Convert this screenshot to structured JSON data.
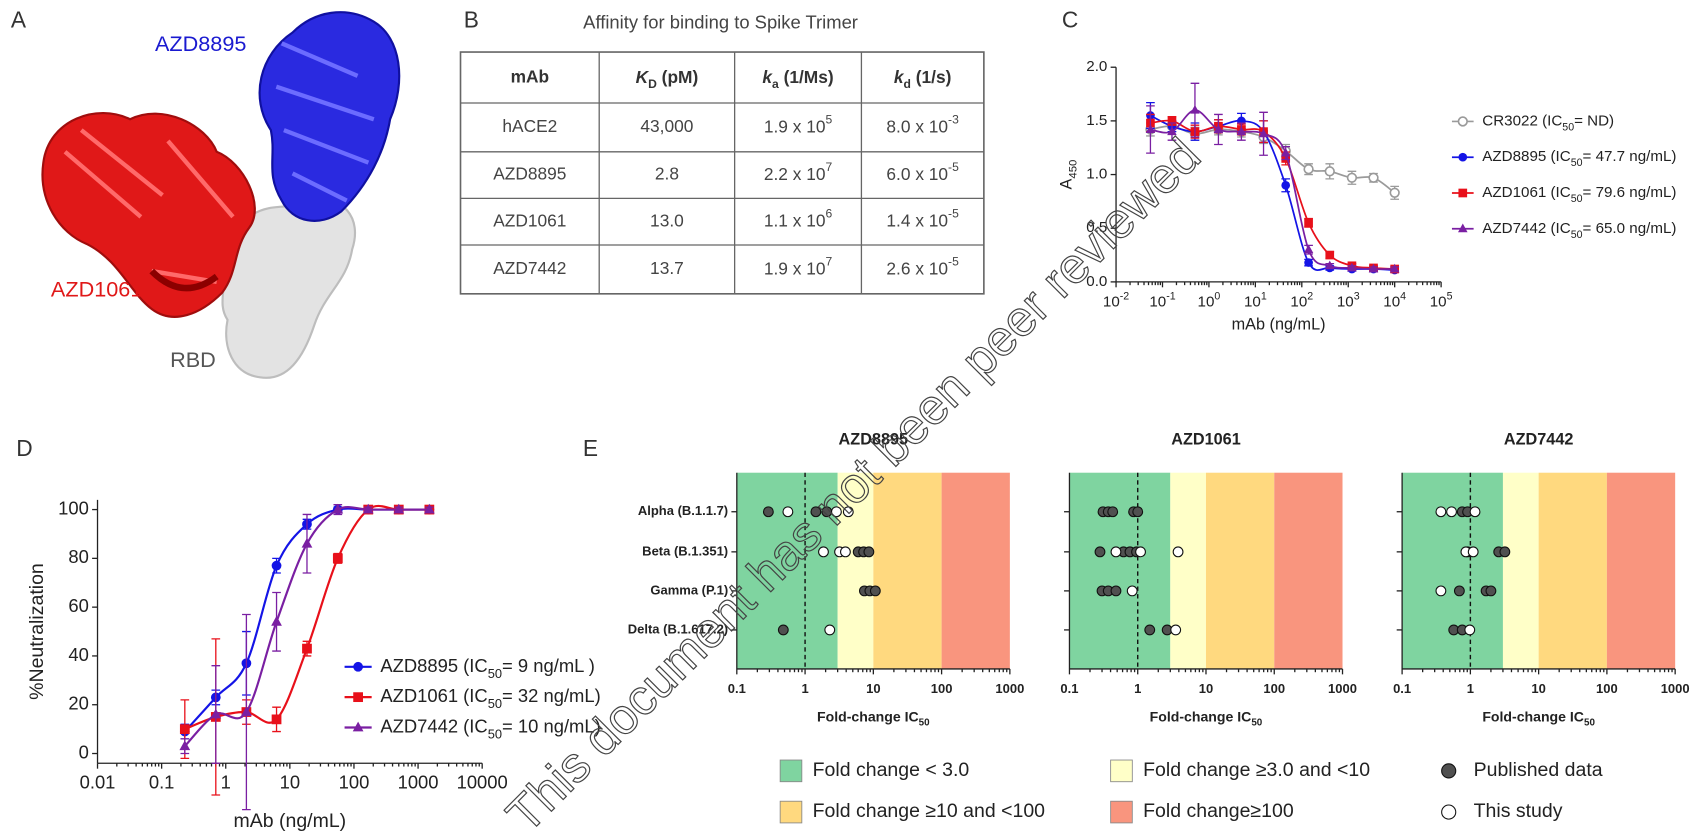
{
  "structure": {
    "label": "A",
    "chains": [
      "AZD8895",
      "AZD1061",
      "RBD"
    ]
  },
  "table": {
    "label": "B",
    "title": "Affinity for binding to Spike Trimer",
    "header": [
      "mAb",
      [
        "K",
        "D",
        " (pM)"
      ],
      [
        "k",
        "a",
        " (1/Ms)"
      ],
      [
        "k",
        "d",
        " (1/s)"
      ]
    ],
    "rows": [
      [
        "hACE2",
        "43,000",
        [
          "1.9 x 10",
          "5"
        ],
        [
          "8.0 x 10",
          "-3"
        ]
      ],
      [
        "AZD8895",
        "2.8",
        [
          "2.2 x 10",
          "7"
        ],
        [
          "6.0 x 10",
          "-5"
        ]
      ],
      [
        "AZD1061",
        "13.0",
        [
          "1.1 x 10",
          "6"
        ],
        [
          "1.4 x 10",
          "-5"
        ]
      ],
      [
        "AZD7442",
        "13.7",
        [
          "1.9 x 10",
          "7"
        ],
        [
          "2.6 x 10",
          "-5"
        ]
      ]
    ]
  },
  "chart_data": [
    {
      "label": "C",
      "type": "line",
      "x_scale": "log",
      "xlabel": "mAb (ng/mL)",
      "ylabel": [
        "A",
        "450"
      ],
      "xlim": [
        0.01,
        100000
      ],
      "xticks": [
        {
          "value": 0.01,
          "label": "10",
          "label_exp": "-2"
        },
        {
          "value": 0.1,
          "label": "10",
          "label_exp": "-1"
        },
        {
          "value": 1,
          "label": "10",
          "label_exp": "0"
        },
        {
          "value": 10,
          "label": "10",
          "label_exp": "1"
        },
        {
          "value": 100,
          "label": "10",
          "label_exp": "2"
        },
        {
          "value": 1000,
          "label": "10",
          "label_exp": "3"
        },
        {
          "value": 10000,
          "label": "10",
          "label_exp": "4"
        },
        {
          "value": 100000,
          "label": "10",
          "label_exp": "5"
        }
      ],
      "ylim": [
        0,
        2
      ],
      "yticks": [
        {
          "value": 0,
          "label": "0.0"
        },
        0.5,
        {
          "value": 1,
          "label": "1.0"
        },
        1.5,
        {
          "value": 2,
          "label": "2.0"
        }
      ],
      "x": [
        0.055,
        0.16,
        0.5,
        1.6,
        5,
        15,
        45,
        140,
        400,
        1200,
        3500,
        10000
      ],
      "legend": "right",
      "series": [
        {
          "name": [
            "CR3022 (IC",
            "50",
            "= ND)"
          ],
          "color": "#9a9a9a",
          "marker": "open-circle",
          "values": [
            1.42,
            1.45,
            1.38,
            1.42,
            1.4,
            1.35,
            1.22,
            1.05,
            1.03,
            0.97,
            0.97,
            0.83
          ],
          "errors": [
            0.06,
            0.05,
            0.06,
            0.05,
            0.05,
            0.06,
            0.06,
            0.05,
            0.07,
            0.06,
            0.04,
            0.06
          ]
        },
        {
          "name": [
            "AZD8895 (IC",
            "50",
            "= 47.7 ng/mL)"
          ],
          "color": "#1414e6",
          "marker": "circle",
          "values": [
            1.55,
            1.45,
            1.4,
            1.45,
            1.5,
            1.4,
            0.9,
            0.18,
            0.13,
            0.12,
            0.12,
            0.11
          ],
          "errors": [
            0.12,
            0.05,
            0.08,
            0.06,
            0.07,
            0.1,
            0.06,
            0.03,
            0.02,
            0.02,
            0.02,
            0.02
          ]
        },
        {
          "name": [
            "AZD1061 (IC",
            "50",
            "= 79.6 ng/mL)"
          ],
          "color": "#e8101a",
          "marker": "square",
          "values": [
            1.48,
            1.5,
            1.4,
            1.45,
            1.42,
            1.4,
            1.15,
            0.55,
            0.25,
            0.15,
            0.13,
            0.12
          ],
          "errors": [
            0.08,
            0.04,
            0.06,
            0.06,
            0.05,
            0.1,
            0.06,
            0.04,
            0.03,
            0.02,
            0.02,
            0.02
          ]
        },
        {
          "name": [
            "AZD7442 (IC",
            "50",
            "= 65.0 ng/mL)"
          ],
          "color": "#7a1fa2",
          "marker": "triangle",
          "values": [
            1.42,
            1.4,
            1.6,
            1.42,
            1.4,
            1.38,
            1.2,
            0.3,
            0.15,
            0.13,
            0.12,
            0.12
          ],
          "errors": [
            0.22,
            0.08,
            0.25,
            0.14,
            0.08,
            0.2,
            0.06,
            0.04,
            0.02,
            0.02,
            0.02,
            0.02
          ]
        }
      ]
    },
    {
      "label": "D",
      "type": "line",
      "x_scale": "log",
      "xlabel": "mAb (ng/mL)",
      "ylabel": "%Neutralization",
      "xlim": [
        0.01,
        10000
      ],
      "xticks": [
        0.01,
        0.1,
        1,
        10,
        100,
        1000,
        10000
      ],
      "ylim": [
        -4,
        104
      ],
      "yticks": [
        0,
        20,
        40,
        60,
        80,
        100
      ],
      "x": [
        0.23,
        0.7,
        2.1,
        6.2,
        18.5,
        56,
        167,
        500,
        1500
      ],
      "legend": "lower right",
      "series": [
        {
          "name": [
            "AZD8895 (IC",
            "50",
            "= 9 ng/mL )"
          ],
          "color": "#1414e6",
          "marker": "circle",
          "values": [
            9,
            23,
            37,
            77,
            94,
            100,
            100,
            100,
            100
          ],
          "errors": [
            3,
            3,
            13,
            3,
            2,
            1,
            1,
            1,
            1
          ]
        },
        {
          "name": [
            "AZD1061 (IC",
            "50",
            "= 32 ng/mL)"
          ],
          "color": "#e8101a",
          "marker": "square",
          "values": [
            10,
            15,
            17,
            14,
            43,
            80,
            100,
            100,
            100
          ],
          "errors": [
            12,
            32,
            5,
            5,
            3,
            2,
            1,
            1,
            1
          ]
        },
        {
          "name": [
            "AZD7442 (IC",
            "50",
            "= 10 ng/mL)"
          ],
          "color": "#7a1fa2",
          "marker": "triangle",
          "values": [
            3,
            16,
            17,
            54,
            86,
            100,
            100,
            100,
            100
          ],
          "errors": [
            3,
            20,
            40,
            12,
            12,
            2,
            1,
            1,
            1
          ]
        }
      ]
    },
    {
      "label": "E",
      "type": "dot",
      "x_scale": "log",
      "categories": [
        "Alpha (B.1.1.7)",
        "Beta (B.1.351)",
        "Gamma (P.1)",
        "Delta (B.1.617.2)"
      ],
      "xlim": [
        0.1,
        1000
      ],
      "xticks": [
        0.1,
        1,
        10,
        100,
        1000
      ],
      "xlabel": [
        "Fold-change IC",
        "50"
      ],
      "reference_line": 1,
      "zones": [
        {
          "label": "Fold change < 3.0",
          "from": 0.1,
          "to": 3,
          "color": "#7fd4a0"
        },
        {
          "label": "Fold change ≥3.0 and <10",
          "from": 3,
          "to": 10,
          "color": "#ffffc8"
        },
        {
          "label": "Fold change ≥10 and <100",
          "from": 10,
          "to": 100,
          "color": "#ffd97f"
        },
        {
          "label": "Fold change≥100",
          "from": 100,
          "to": 1000,
          "color": "#f9957e"
        }
      ],
      "markers": [
        {
          "name": "Published data",
          "color": "#505050"
        },
        {
          "name": "This study",
          "color": "#ffffff"
        }
      ],
      "panels": [
        {
          "title": "AZD8895",
          "published": [
            [
              0.29,
              1.44,
              2.08
            ],
            [
              6.0,
              7.2,
              8.6
            ],
            [
              7.4,
              8.9,
              10.7
            ],
            [
              0.48
            ]
          ],
          "this_study": [
            [
              0.56,
              2.88,
              4.3
            ],
            [
              1.86,
              3.2,
              3.9
            ],
            [],
            [
              2.3
            ]
          ]
        },
        {
          "title": "AZD1061",
          "published": [
            [
              0.31,
              0.37,
              0.43,
              0.87,
              1.0
            ],
            [
              0.28,
              0.62,
              0.77,
              0.96
            ],
            [
              0.3,
              0.37,
              0.48
            ],
            [
              1.5,
              2.7
            ]
          ],
          "this_study": [
            [],
            [
              0.48,
              1.1,
              3.9
            ],
            [
              0.83
            ],
            [
              3.6
            ]
          ]
        },
        {
          "title": "AZD7442",
          "published": [
            [
              0.76,
              0.91
            ],
            [
              0.91,
              2.6,
              3.2
            ],
            [
              0.69,
              1.7,
              2.0
            ],
            [
              0.57,
              0.76
            ]
          ],
          "this_study": [
            [
              0.37,
              0.53,
              1.17
            ],
            [
              0.86,
              1.1
            ],
            [
              0.37
            ],
            [
              0.98
            ]
          ]
        }
      ]
    }
  ],
  "watermark": "This document has not been peer reviewed"
}
